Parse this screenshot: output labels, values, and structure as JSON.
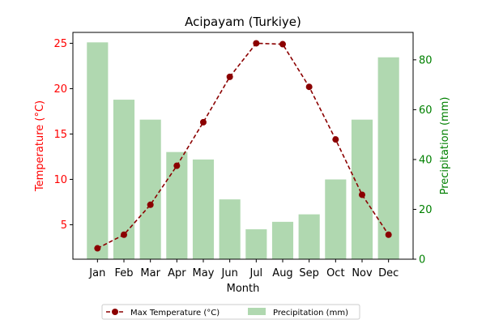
{
  "chart_data": {
    "type": "bar+line",
    "title": "Acipayam (Turkiye)",
    "xlabel": "Month",
    "ylabel_left": "Temperature (°C)",
    "ylabel_right": "Precipitation (mm)",
    "categories": [
      "Jan",
      "Feb",
      "Mar",
      "Apr",
      "May",
      "Jun",
      "Jul",
      "Aug",
      "Sep",
      "Oct",
      "Nov",
      "Dec"
    ],
    "series": [
      {
        "name": "Max Temperature (°C)",
        "type": "line",
        "axis": "left",
        "values": [
          2.4,
          3.9,
          7.2,
          11.5,
          16.3,
          21.3,
          25.0,
          24.9,
          20.2,
          14.4,
          8.3,
          3.9
        ],
        "color": "#8b0000",
        "line_style": "dashed",
        "marker": "circle"
      },
      {
        "name": "Precipitation (mm)",
        "type": "bar",
        "axis": "right",
        "values": [
          87,
          64,
          56,
          43,
          40,
          24,
          12,
          15,
          18,
          32,
          56,
          81
        ],
        "color": "#b0d8b0"
      }
    ],
    "ylim_left": [
      1.2,
      26.2
    ],
    "ylim_right": [
      0,
      91
    ],
    "yticks_left": [
      5,
      10,
      15,
      20,
      25
    ],
    "yticks_right": [
      0,
      20,
      40,
      60,
      80
    ],
    "left_axis_color": "#ff0000",
    "right_axis_color": "#008000",
    "grid": false,
    "legend_position": "bottom-center"
  }
}
